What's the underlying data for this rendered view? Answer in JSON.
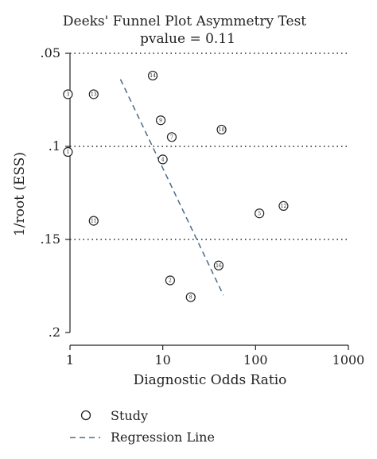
{
  "chart_data": {
    "type": "scatter",
    "title": "Deeks' Funnel Plot Asymmetry Test",
    "subtitle": "pvalue = 0.11",
    "xlabel": "Diagnostic Odds Ratio",
    "ylabel": "1/root (ESS)",
    "x_scale": "log",
    "xlim": [
      1,
      1000
    ],
    "ylim": [
      0.05,
      0.2
    ],
    "y_inverted": true,
    "x_ticks": [
      1,
      10,
      100,
      1000
    ],
    "x_tick_labels": [
      "1",
      "10",
      "100",
      "1000"
    ],
    "y_ticks": [
      0.05,
      0.1,
      0.15,
      0.2
    ],
    "y_tick_labels": [
      ".05",
      ".1",
      ".15",
      ".2"
    ],
    "gridlines_y": [
      0.05,
      0.1,
      0.15
    ],
    "points": [
      {
        "label": "1",
        "x": 0.95,
        "y": 0.103
      },
      {
        "label": "2",
        "x": 12,
        "y": 0.172
      },
      {
        "label": "3",
        "x": 0.95,
        "y": 0.072
      },
      {
        "label": "4",
        "x": 10,
        "y": 0.107
      },
      {
        "label": "5",
        "x": 110,
        "y": 0.136
      },
      {
        "label": "7",
        "x": 12.5,
        "y": 0.095
      },
      {
        "label": "8",
        "x": 20,
        "y": 0.181
      },
      {
        "label": "9",
        "x": 9.5,
        "y": 0.086
      },
      {
        "label": "10",
        "x": 43,
        "y": 0.091
      },
      {
        "label": "11",
        "x": 1.8,
        "y": 0.14
      },
      {
        "label": "12",
        "x": 200,
        "y": 0.132
      },
      {
        "label": "13",
        "x": 1.8,
        "y": 0.072
      },
      {
        "label": "14",
        "x": 7.8,
        "y": 0.062
      },
      {
        "label": "16",
        "x": 40,
        "y": 0.164
      }
    ],
    "regression_line": {
      "x": [
        3.5,
        45
      ],
      "y": [
        0.064,
        0.18
      ]
    },
    "legend": {
      "position": "bottom",
      "entries": [
        {
          "label": "Study",
          "marker": "circle"
        },
        {
          "label": "Regression Line",
          "marker": "dashed-line"
        }
      ]
    },
    "colors": {
      "regression": "#4a6a8a",
      "axis": "#222222",
      "grid": "#222222"
    }
  }
}
